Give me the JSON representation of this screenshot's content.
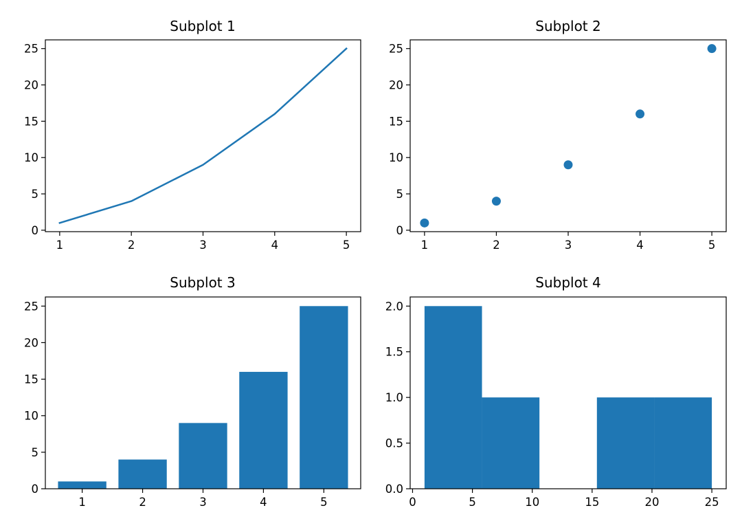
{
  "chart_data": [
    {
      "type": "line",
      "title": "Subplot 1",
      "x": [
        1,
        2,
        3,
        4,
        5
      ],
      "y": [
        1,
        4,
        9,
        16,
        25
      ],
      "xlim": [
        0.8,
        5.2
      ],
      "ylim": [
        -0.2,
        26.2
      ],
      "xticks": [
        1,
        2,
        3,
        4,
        5
      ],
      "yticks": [
        0,
        5,
        10,
        15,
        20,
        25
      ],
      "grid": false
    },
    {
      "type": "scatter",
      "title": "Subplot 2",
      "x": [
        1,
        2,
        3,
        4,
        5
      ],
      "y": [
        1,
        4,
        9,
        16,
        25
      ],
      "xlim": [
        0.8,
        5.2
      ],
      "ylim": [
        -0.2,
        26.2
      ],
      "xticks": [
        1,
        2,
        3,
        4,
        5
      ],
      "yticks": [
        0,
        5,
        10,
        15,
        20,
        25
      ],
      "grid": false
    },
    {
      "type": "bar",
      "title": "Subplot 3",
      "categories": [
        1,
        2,
        3,
        4,
        5
      ],
      "values": [
        1,
        4,
        9,
        16,
        25
      ],
      "bar_width": 0.8,
      "xlim": [
        0.39,
        5.61
      ],
      "ylim": [
        0,
        26.25
      ],
      "xticks": [
        1,
        2,
        3,
        4,
        5
      ],
      "yticks": [
        0,
        5,
        10,
        15,
        20,
        25
      ],
      "grid": false
    },
    {
      "type": "bar",
      "title": "Subplot 4",
      "bins": [
        1,
        5.8,
        10.6,
        15.4,
        20.2,
        25
      ],
      "counts": [
        2,
        1,
        0,
        1,
        1
      ],
      "xlim": [
        -0.2,
        26.2
      ],
      "ylim": [
        0,
        2.1
      ],
      "xticks": [
        0,
        5,
        10,
        15,
        20,
        25
      ],
      "yticks": [
        "0.0",
        "0.5",
        "1.0",
        "1.5",
        "2.0"
      ],
      "grid": false
    }
  ],
  "colors": {
    "series": "#1f77b4",
    "axes": "#000000",
    "background": "#ffffff"
  }
}
